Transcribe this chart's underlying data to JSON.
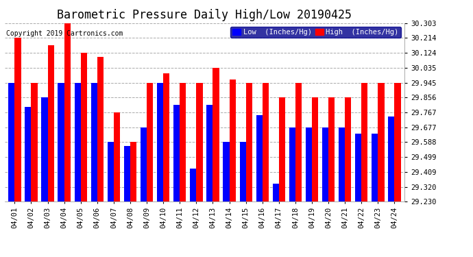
{
  "title": "Barometric Pressure Daily High/Low 20190425",
  "copyright": "Copyright 2019 Cartronics.com",
  "legend_low": "Low  (Inches/Hg)",
  "legend_high": "High  (Inches/Hg)",
  "dates": [
    "04/01",
    "04/02",
    "04/03",
    "04/04",
    "04/05",
    "04/06",
    "04/07",
    "04/08",
    "04/09",
    "04/10",
    "04/11",
    "04/12",
    "04/13",
    "04/14",
    "04/15",
    "04/16",
    "04/17",
    "04/18",
    "04/19",
    "04/20",
    "04/21",
    "04/22",
    "04/23",
    "04/24"
  ],
  "low_values": [
    29.945,
    29.8,
    29.856,
    29.945,
    29.945,
    29.945,
    29.588,
    29.565,
    29.677,
    29.945,
    29.81,
    29.43,
    29.81,
    29.588,
    29.588,
    29.75,
    29.34,
    29.677,
    29.677,
    29.677,
    29.677,
    29.64,
    29.64,
    29.74
  ],
  "high_values": [
    30.214,
    29.945,
    30.17,
    30.303,
    30.124,
    30.1,
    29.767,
    29.588,
    29.945,
    30.0,
    29.945,
    29.945,
    30.035,
    29.965,
    29.945,
    29.945,
    29.856,
    29.945,
    29.856,
    29.856,
    29.856,
    29.945,
    29.945,
    29.945
  ],
  "low_color": "#0000ff",
  "high_color": "#ff0000",
  "bg_color": "#ffffff",
  "grid_color": "#aaaaaa",
  "ymin": 29.23,
  "ymax": 30.303,
  "yticks": [
    29.23,
    29.32,
    29.409,
    29.499,
    29.588,
    29.677,
    29.767,
    29.856,
    29.945,
    30.035,
    30.124,
    30.214,
    30.303
  ],
  "title_fontsize": 12,
  "copyright_fontsize": 7,
  "legend_fontsize": 7.5,
  "tick_fontsize": 7.5,
  "bar_width": 0.38
}
